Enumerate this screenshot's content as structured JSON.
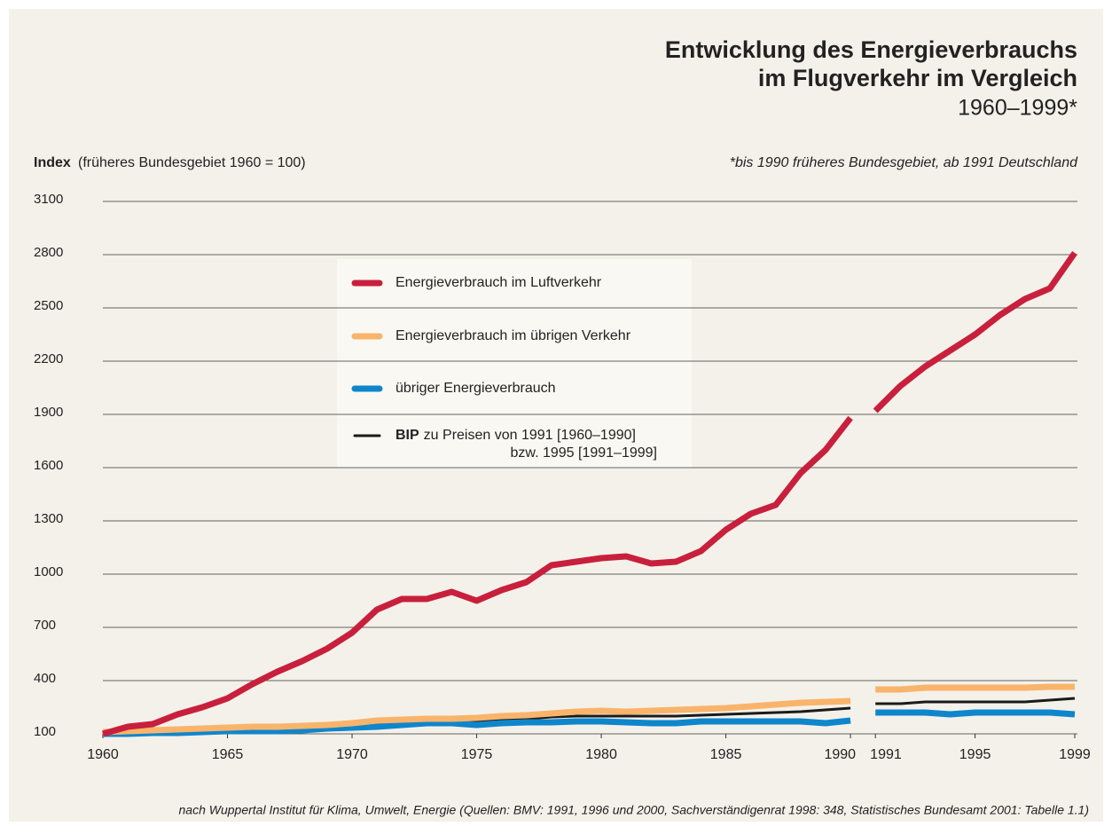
{
  "chart_data": {
    "type": "line",
    "title": [
      "Entwicklung des Energieverbrauchs",
      "im Flugverkehr im Vergleich"
    ],
    "subtitle": "1960–1999*",
    "y_label": {
      "bold": "Index",
      "text": "(früheres Bundesgebiet 1960 = 100)"
    },
    "note": "*bis 1990 früheres Bundesgebiet, ab 1991 Deutschland",
    "source": "nach Wuppertal Institut für Klima, Umwelt, Energie (Quellen: BMV: 1991, 1996 und 2000, Sachverständigenrat 1998: 348, Statistisches Bundesamt 2001: Tabelle 1.1)",
    "x": [
      1960,
      1961,
      1962,
      1963,
      1964,
      1965,
      1966,
      1967,
      1968,
      1969,
      1970,
      1971,
      1972,
      1973,
      1974,
      1975,
      1976,
      1977,
      1978,
      1979,
      1980,
      1981,
      1982,
      1983,
      1984,
      1985,
      1986,
      1987,
      1988,
      1989,
      1990,
      1991,
      1992,
      1993,
      1994,
      1995,
      1996,
      1997,
      1998,
      1999
    ],
    "x_break": [
      1990,
      1991
    ],
    "xlim": [
      1960,
      1999
    ],
    "xticks": [
      1960,
      1965,
      1970,
      1975,
      1980,
      1985,
      1990,
      1991,
      1995,
      1999
    ],
    "ylim": [
      100,
      3100
    ],
    "yticks": [
      100,
      400,
      700,
      1000,
      1300,
      1600,
      1900,
      2200,
      2500,
      2800,
      3100
    ],
    "grid": true,
    "series": [
      {
        "name": "Energieverbrauch im Luftverkehr",
        "color": "#c8203c",
        "values": [
          100,
          140,
          155,
          210,
          250,
          300,
          380,
          450,
          510,
          580,
          670,
          800,
          860,
          860,
          900,
          850,
          910,
          955,
          1050,
          1070,
          1090,
          1100,
          1060,
          1070,
          1130,
          1250,
          1340,
          1390,
          1570,
          1700,
          1880,
          1920,
          2060,
          2170,
          2260,
          2350,
          2460,
          2550,
          2610,
          2810
        ]
      },
      {
        "name": "Energieverbrauch im übrigen Verkehr",
        "color": "#f9b46b",
        "values": [
          110,
          115,
          120,
          125,
          130,
          135,
          140,
          140,
          145,
          150,
          160,
          175,
          180,
          185,
          185,
          190,
          200,
          205,
          215,
          225,
          230,
          225,
          230,
          235,
          240,
          245,
          255,
          265,
          275,
          280,
          285,
          350,
          350,
          360,
          360,
          360,
          360,
          360,
          365,
          365
        ]
      },
      {
        "name": "übriger Energieverbrauch",
        "color": "#0e86cc",
        "values": [
          100,
          100,
          105,
          105,
          110,
          115,
          115,
          115,
          120,
          130,
          135,
          140,
          150,
          160,
          160,
          150,
          160,
          165,
          165,
          170,
          170,
          165,
          160,
          160,
          170,
          170,
          170,
          170,
          170,
          160,
          175,
          220,
          220,
          220,
          210,
          220,
          220,
          220,
          220,
          210
        ]
      },
      {
        "name": "BIP",
        "name_detail": [
          "zu Preisen von 1991  [1960–1990]",
          "bzw. 1995  [1991–1999]"
        ],
        "color": "#1a1a1a",
        "values": [
          100,
          105,
          110,
          115,
          120,
          125,
          130,
          130,
          135,
          140,
          145,
          155,
          160,
          170,
          170,
          170,
          180,
          185,
          195,
          200,
          200,
          200,
          200,
          200,
          205,
          210,
          215,
          220,
          225,
          235,
          245,
          270,
          270,
          280,
          280,
          280,
          280,
          280,
          290,
          300
        ]
      }
    ]
  }
}
